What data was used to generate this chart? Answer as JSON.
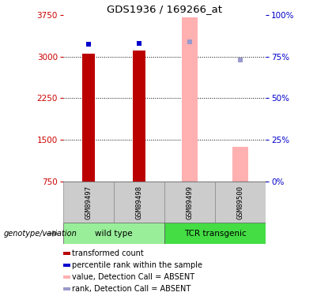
{
  "title": "GDS1936 / 169266_at",
  "samples": [
    "GSM89497",
    "GSM89498",
    "GSM89499",
    "GSM89500"
  ],
  "ylim_left": [
    750,
    3750
  ],
  "ylim_right": [
    0,
    100
  ],
  "yticks_left": [
    750,
    1500,
    2250,
    3000,
    3750
  ],
  "yticks_right": [
    0,
    25,
    50,
    75,
    100
  ],
  "bar_values": [
    3050,
    3100,
    null,
    null
  ],
  "bar_color": "#bb0000",
  "absent_bar_values": [
    null,
    null,
    3700,
    1380
  ],
  "absent_bar_color": "#ffb0b0",
  "rank_values": [
    3220,
    3240,
    null,
    null
  ],
  "rank_color": "#0000cc",
  "absent_rank_values": [
    null,
    null,
    3260,
    2930
  ],
  "absent_rank_color": "#9999cc",
  "groups": [
    {
      "label": "wild type",
      "samples": [
        0,
        1
      ],
      "color": "#99ee99"
    },
    {
      "label": "TCR transgenic",
      "samples": [
        2,
        3
      ],
      "color": "#44dd44"
    }
  ],
  "group_label": "genotype/variation",
  "legend_items": [
    {
      "label": "transformed count",
      "color": "#bb0000"
    },
    {
      "label": "percentile rank within the sample",
      "color": "#0000cc"
    },
    {
      "label": "value, Detection Call = ABSENT",
      "color": "#ffb0b0"
    },
    {
      "label": "rank, Detection Call = ABSENT",
      "color": "#9999cc"
    }
  ],
  "left_tick_color": "#cc0000",
  "right_tick_color": "#0000cc",
  "bar_width": 0.25,
  "rank_marker_size": 5,
  "absent_bar_width": 0.32
}
